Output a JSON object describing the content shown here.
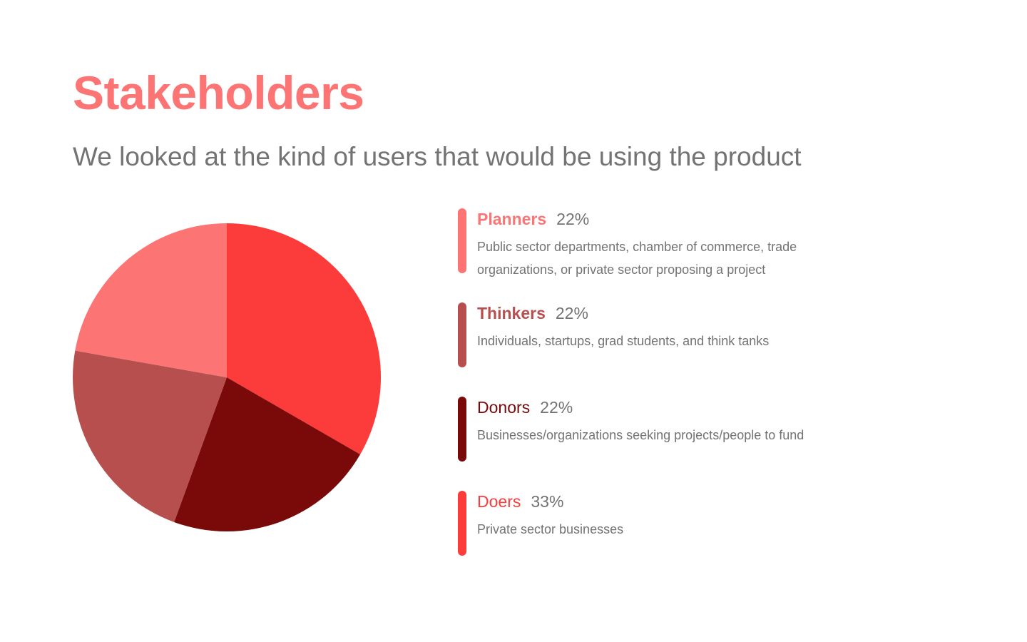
{
  "title": "Stakeholders",
  "subtitle": "We looked at the kind of users that would be using the product",
  "legend": [
    {
      "name": "Planners",
      "pct": "22%",
      "desc": "Public sector departments, chamber of commerce, trade organizations, or private sector proposing a project",
      "color": "#fc7474",
      "bold": true
    },
    {
      "name": "Thinkers",
      "pct": "22%",
      "desc": "Individuals, startups, grad students, and think tanks",
      "color": "#b84f4f",
      "bold": true
    },
    {
      "name": "Donors",
      "pct": "22%",
      "desc": "Businesses/organizations seeking projects/people to fund",
      "color": "#7a0a0a",
      "bold": false
    },
    {
      "name": "Doers",
      "pct": "33%",
      "desc": "Private sector businesses",
      "color": "#fc3b3b",
      "bold": false
    }
  ],
  "chart_data": {
    "type": "pie",
    "start": "12 o'clock",
    "direction": "clockwise",
    "slices": [
      {
        "label": "Doers",
        "value": 33,
        "color": "#fc3b3b"
      },
      {
        "label": "Donors",
        "value": 22,
        "color": "#7a0a0a"
      },
      {
        "label": "Thinkers",
        "value": 22,
        "color": "#b84f4f"
      },
      {
        "label": "Planners",
        "value": 22,
        "color": "#fc7474"
      }
    ]
  }
}
